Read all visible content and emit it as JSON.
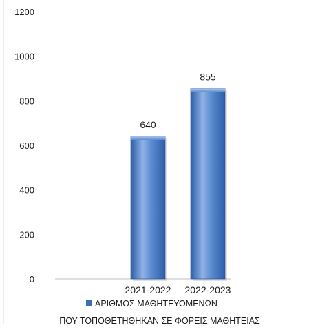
{
  "chart_data": {
    "type": "bar",
    "categories": [
      "2021-2022",
      "2022-2023"
    ],
    "series": [
      {
        "name": "ΑΡΙΘΜΟΣ ΜΑΘΗΤΕΥΟΜΕΝΩΝ ΠΟΥ ΤΟΠΟΘΕΤΗΘΗΚΑΝ ΣΕ ΦΟΡΕΙΣ ΜΑΘΗΤΕΙΑΣ",
        "values": [
          640,
          855
        ]
      }
    ],
    "data_labels": [
      "640",
      "855"
    ],
    "ylim": [
      0,
      1200
    ],
    "yticks": [
      0,
      200,
      400,
      600,
      800,
      1000,
      1200
    ],
    "grid": false,
    "legend": {
      "position": "bottom",
      "line1": "ΑΡΙΘΜΟΣ ΜΑΘΗΤΕΥΟΜΕΝΩΝ",
      "line2": "ΠΟΥ ΤΟΠΟΘΕΤΗΘΗΚΑΝ ΣΕ ΦΟΡΕΙΣ ΜΑΘΗΤΕΙΑΣ"
    },
    "colors": {
      "bar_light": "#8fb2e6",
      "bar_mid": "#5b8bd0",
      "bar_dark": "#2d5ea8",
      "bar_edge": "#1f4a8c",
      "axis": "#bfbfbf"
    }
  }
}
